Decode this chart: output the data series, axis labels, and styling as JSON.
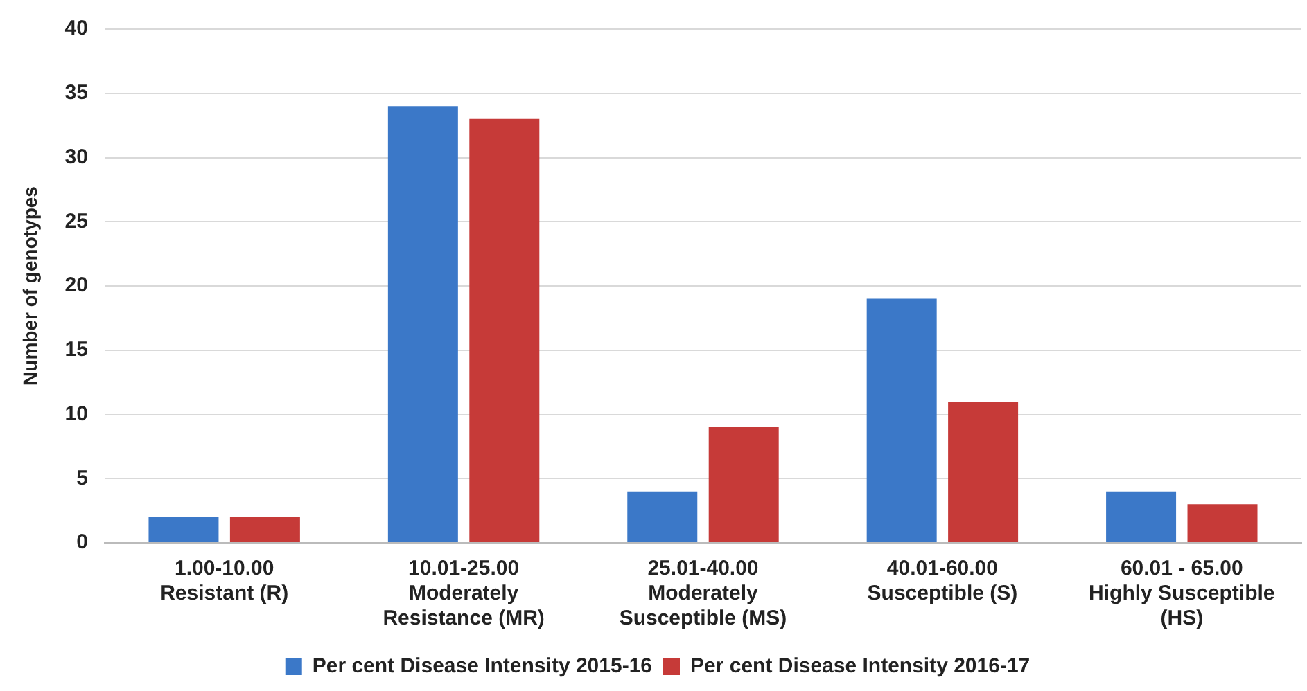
{
  "chart_data": {
    "type": "bar",
    "ylabel": "Number of genotypes",
    "categories": [
      "1.00-10.00\nResistant (R)",
      "10.01-25.00\nModerately\nResistance (MR)",
      "25.01-40.00\nModerately\nSusceptible (MS)",
      "40.01-60.00\nSusceptible (S)",
      "60.01 - 65.00\nHighly Susceptible\n(HS)"
    ],
    "series": [
      {
        "name": "Per cent Disease Intensity 2015-16",
        "color": "#3b78c8",
        "values": [
          2,
          34,
          4,
          19,
          4
        ]
      },
      {
        "name": "Per cent Disease Intensity 2016-17",
        "color": "#c63a38",
        "values": [
          2,
          33,
          9,
          11,
          3
        ]
      }
    ],
    "ylim": [
      0,
      40
    ],
    "yticks": [
      0,
      5,
      10,
      15,
      20,
      25,
      30,
      35,
      40
    ],
    "grid": "y",
    "legend": "bottom"
  }
}
